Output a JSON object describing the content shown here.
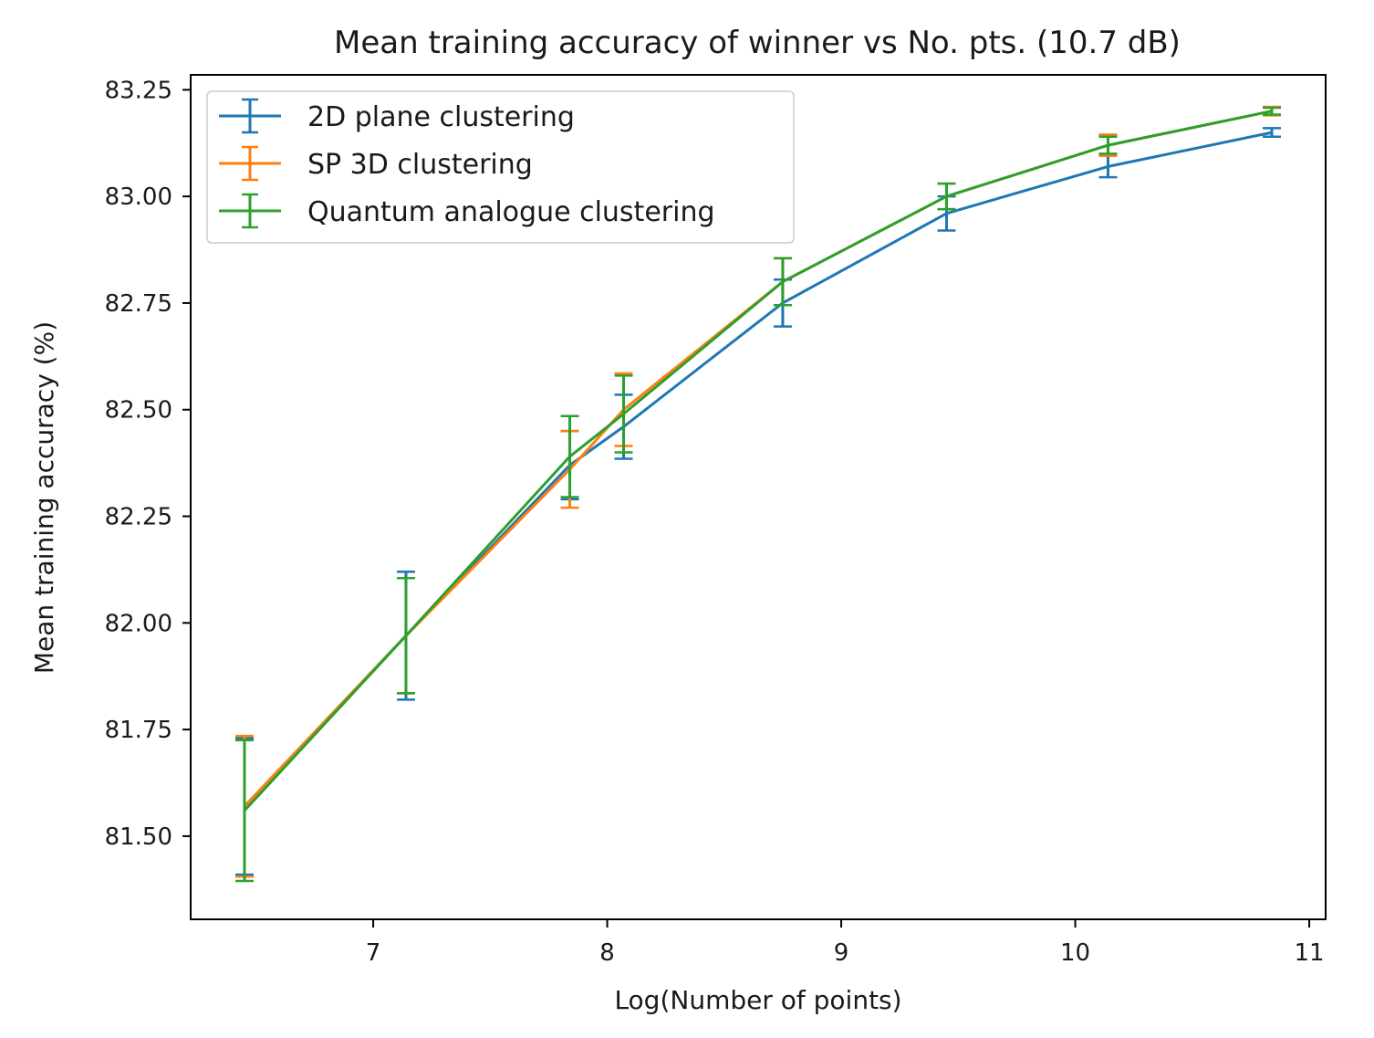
{
  "chart_data": {
    "type": "line",
    "title": "Mean training accuracy of winner vs No. pts. (10.7 dB)",
    "xlabel": "Log(Number of points)",
    "ylabel": "Mean training accuracy (%)",
    "xlim": [
      6.22,
      11.07
    ],
    "ylim": [
      81.305,
      83.285
    ],
    "x_ticks": [
      7,
      8,
      9,
      10,
      11
    ],
    "x_tick_labels": [
      "7",
      "8",
      "9",
      "10",
      "11"
    ],
    "y_ticks": [
      81.5,
      81.75,
      82.0,
      82.25,
      82.5,
      82.75,
      83.0,
      83.25
    ],
    "y_tick_labels": [
      "81.50",
      "81.75",
      "82.00",
      "82.25",
      "82.50",
      "82.75",
      "83.00",
      "83.25"
    ],
    "grid": false,
    "legend_position": "upper-left",
    "x": [
      6.45,
      7.14,
      7.84,
      8.07,
      8.75,
      9.45,
      10.14,
      10.84
    ],
    "series": [
      {
        "name": "2D plane clustering",
        "color": "#1f77b4",
        "values": [
          81.57,
          81.97,
          82.37,
          82.46,
          82.75,
          82.96,
          83.07,
          83.15
        ],
        "errors": [
          0.16,
          0.15,
          0.08,
          0.075,
          0.055,
          0.04,
          0.025,
          0.01
        ]
      },
      {
        "name": "SP 3D clustering",
        "color": "#ff7f0e",
        "values": [
          81.57,
          81.97,
          82.36,
          82.5,
          82.8,
          83.0,
          83.12,
          83.2
        ],
        "errors": [
          0.165,
          0.135,
          0.09,
          0.085,
          0.055,
          0.03,
          0.025,
          0.01
        ]
      },
      {
        "name": "Quantum analogue clustering",
        "color": "#2ca02c",
        "values": [
          81.56,
          81.97,
          82.39,
          82.49,
          82.8,
          83.0,
          83.12,
          83.2
        ],
        "errors": [
          0.165,
          0.135,
          0.095,
          0.09,
          0.055,
          0.03,
          0.02,
          0.008
        ]
      }
    ]
  }
}
